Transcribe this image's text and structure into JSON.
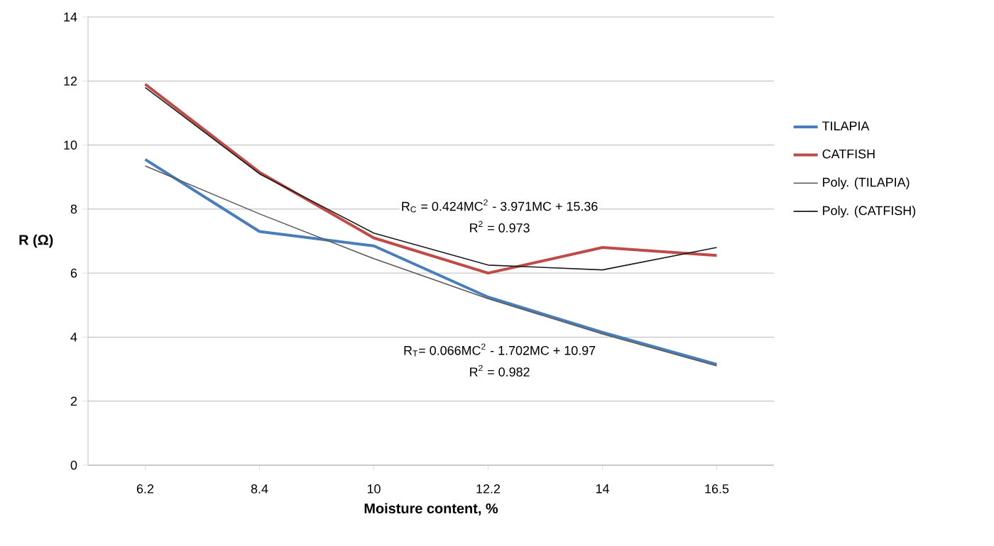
{
  "chart_data": {
    "type": "line",
    "xlabel": "Moisture content, %",
    "ylabel": "R (Ω)",
    "categories": [
      "6.2",
      "8.4",
      "10",
      "12.2",
      "14",
      "16.5"
    ],
    "series": [
      {
        "name": "TILAPIA",
        "color": "#4a7ebb",
        "values": [
          9.55,
          7.3,
          6.85,
          5.25,
          4.15,
          3.15
        ]
      },
      {
        "name": "CATFISH",
        "color": "#be4b48",
        "values": [
          11.9,
          9.15,
          7.1,
          6.0,
          6.8,
          6.55
        ]
      },
      {
        "name": "Poly. (TILAPIA)",
        "color": "#595959",
        "values": [
          9.35,
          7.85,
          6.45,
          5.2,
          4.1,
          3.1
        ]
      },
      {
        "name": "Poly. (CATFISH)",
        "color": "#1a1a1a",
        "values": [
          11.8,
          9.1,
          7.25,
          6.25,
          6.1,
          6.8
        ]
      }
    ],
    "ylim": [
      0,
      14
    ],
    "yticks": [
      0,
      2,
      4,
      6,
      8,
      10,
      12,
      14
    ],
    "grid": "y",
    "legend": "right",
    "marker": "none",
    "line_style": "solid",
    "annotations": [
      "R$_{C}$ = 0.424MC$^{2}$ - 3.971MC + 15.36",
      "R$^{2}$ = 0.973",
      "R$_{T}$= 0.066MC$^{2}$ - 1.702MC + 10.97",
      "R$^{2}$ = 0.982"
    ]
  }
}
